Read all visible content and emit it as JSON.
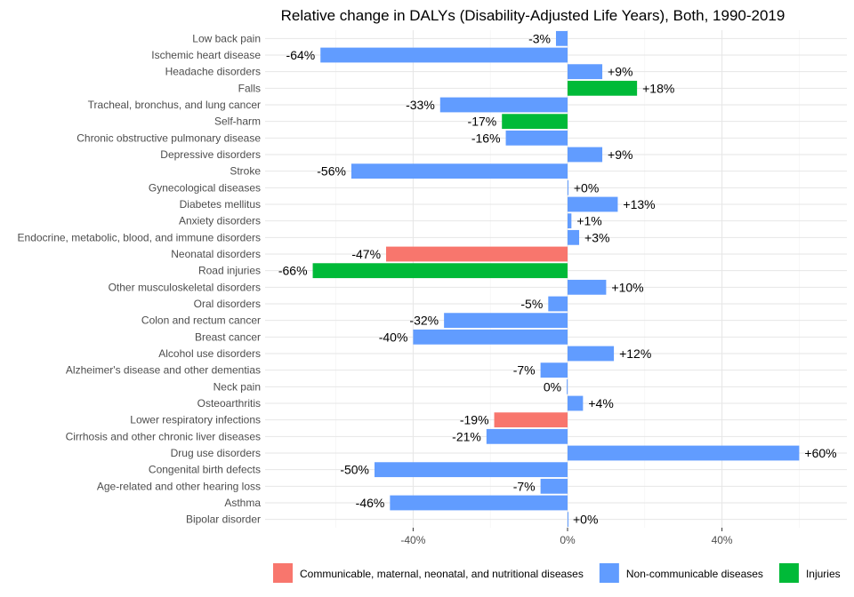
{
  "chart_data": {
    "type": "bar",
    "orientation": "horizontal",
    "title": "Relative change in DALYs (Disability-Adjusted Life Years), Both, 1990-2019",
    "xlabel": "",
    "ylabel": "",
    "xlim": [
      -78,
      72
    ],
    "x_ticks": [
      -40,
      0,
      40
    ],
    "x_tick_labels": [
      "-40%",
      "0%",
      "40%"
    ],
    "grid": true,
    "legend_position": "bottom",
    "groups": [
      {
        "name": "Communicable, maternal, neonatal, and nutritional diseases",
        "color": "#F8766D"
      },
      {
        "name": "Non-communicable diseases",
        "color": "#619CFF"
      },
      {
        "name": "Injuries",
        "color": "#00BA38"
      }
    ],
    "categories": [
      "Low back pain",
      "Ischemic heart disease",
      "Headache disorders",
      "Falls",
      "Tracheal, bronchus, and lung cancer",
      "Self-harm",
      "Chronic obstructive pulmonary disease",
      "Depressive disorders",
      "Stroke",
      "Gynecological diseases",
      "Diabetes mellitus",
      "Anxiety disorders",
      "Endocrine, metabolic, blood, and immune disorders",
      "Neonatal disorders",
      "Road injuries",
      "Other musculoskeletal disorders",
      "Oral disorders",
      "Colon and rectum cancer",
      "Breast cancer",
      "Alcohol use disorders",
      "Alzheimer's disease and other dementias",
      "Neck pain",
      "Osteoarthritis",
      "Lower respiratory infections",
      "Cirrhosis and other chronic liver diseases",
      "Drug use disorders",
      "Congenital birth defects",
      "Age-related and other hearing loss",
      "Asthma",
      "Bipolar disorder"
    ],
    "values": [
      -3,
      -64,
      9,
      18,
      -33,
      -17,
      -16,
      9,
      -56,
      0.2,
      13,
      1,
      3,
      -47,
      -66,
      10,
      -5,
      -32,
      -40,
      12,
      -7,
      -0.2,
      4,
      -19,
      -21,
      60,
      -50,
      -7,
      -46,
      0
    ],
    "value_labels": [
      "-3%",
      "-64%",
      "+9%",
      "+18%",
      "-33%",
      "-17%",
      "-16%",
      "+9%",
      "-56%",
      "+0%",
      "+13%",
      "+1%",
      "+3%",
      "-47%",
      "-66%",
      "+10%",
      "-5%",
      "-32%",
      "-40%",
      "+12%",
      "-7%",
      "0%",
      "+4%",
      "-19%",
      "-21%",
      "+60%",
      "-50%",
      "-7%",
      "-46%",
      "+0%"
    ],
    "group_index": [
      1,
      1,
      1,
      2,
      1,
      2,
      1,
      1,
      1,
      1,
      1,
      1,
      1,
      0,
      2,
      1,
      1,
      1,
      1,
      1,
      1,
      1,
      1,
      0,
      1,
      1,
      1,
      1,
      1,
      1
    ]
  }
}
